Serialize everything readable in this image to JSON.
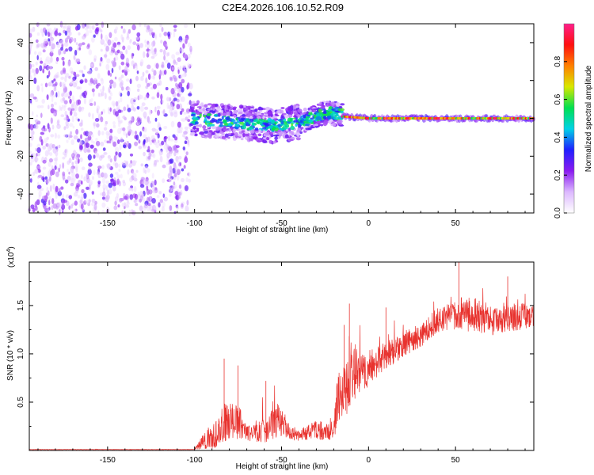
{
  "title": "C2E4.2026.106.10.52.R09",
  "chart_data": [
    {
      "type": "heatmap",
      "name": "spectrogram",
      "xlabel": "Height of straight line (km)",
      "ylabel": "Frequency (Hz)",
      "xlim": [
        -195,
        95
      ],
      "ylim": [
        -50,
        50
      ],
      "xticks": [
        -150,
        -100,
        -50,
        0,
        50
      ],
      "yticks": [
        -40,
        -20,
        0,
        20,
        40
      ],
      "colorbar": {
        "label": "Normalized spectral amplitude",
        "range": [
          0.0,
          1.0
        ],
        "ticks": [
          "0.0",
          "0.2",
          "0.4",
          "0.6",
          "0.8"
        ],
        "colors": [
          "#ffffff",
          "#dcb8ff",
          "#8a1bf0",
          "#1f1fff",
          "#00d2e6",
          "#00e050",
          "#d8e800",
          "#ff8000",
          "#ff1010",
          "#ff1f8a"
        ]
      },
      "regions": [
        {
          "x": [
            -195,
            -102
          ],
          "freq_spread": [
            -50,
            50
          ],
          "amplitude": [
            0.05,
            0.3
          ],
          "description_note": "broadband"
        },
        {
          "x": [
            -102,
            -15
          ],
          "freq_center": [
            [
              -102,
              0
            ],
            [
              -80,
              -2
            ],
            [
              -55,
              -4
            ],
            [
              -40,
              -2
            ],
            [
              -25,
              3
            ],
            [
              -15,
              2
            ]
          ],
          "amplitude": [
            0.2,
            0.55
          ]
        },
        {
          "x": [
            -15,
            95
          ],
          "freq_center": [
            [
              -15,
              1
            ],
            [
              0,
              0
            ],
            [
              95,
              0
            ]
          ],
          "amplitude": [
            0.5,
            1.0
          ]
        }
      ]
    },
    {
      "type": "line",
      "name": "snr",
      "xlabel": "Height of straight line (km)",
      "ylabel": "SNR (10 * v/v)",
      "multiplier": "(x10",
      "multiplier_exp": "4",
      "xlim": [
        -195,
        95
      ],
      "ylim": [
        0,
        1.95
      ],
      "xticks": [
        -150,
        -100,
        -50,
        0,
        50
      ],
      "yticks": [
        "0.5",
        "1.0",
        "1.5"
      ],
      "series": [
        {
          "name": "SNR",
          "color": "#e8322e",
          "envelope_x": [
            -195,
            -100,
            -98,
            -90,
            -82,
            -75,
            -70,
            -60,
            -52,
            -45,
            -40,
            -30,
            -25,
            -20,
            -18,
            -12,
            -8,
            -5,
            0,
            10,
            20,
            30,
            40,
            55,
            70,
            80,
            95
          ],
          "envelope_mean": [
            0.01,
            0.01,
            0.05,
            0.15,
            0.3,
            0.3,
            0.2,
            0.2,
            0.32,
            0.2,
            0.15,
            0.22,
            0.2,
            0.2,
            0.5,
            0.65,
            0.82,
            0.78,
            0.85,
            0.98,
            1.1,
            1.2,
            1.35,
            1.42,
            1.35,
            1.38,
            1.4
          ],
          "envelope_noise": [
            0.002,
            0.002,
            0.04,
            0.15,
            0.2,
            0.18,
            0.1,
            0.12,
            0.18,
            0.09,
            0.06,
            0.1,
            0.1,
            0.1,
            0.25,
            0.28,
            0.3,
            0.22,
            0.18,
            0.15,
            0.13,
            0.13,
            0.13,
            0.18,
            0.17,
            0.16,
            0.12
          ],
          "peaks": [
            [
              -83,
              0.95
            ],
            [
              -75,
              0.88
            ],
            [
              -59,
              0.72
            ],
            [
              -14,
              1.3
            ],
            [
              -11,
              1.52
            ],
            [
              10,
              1.48
            ],
            [
              52,
              1.95
            ],
            [
              80,
              1.8
            ]
          ]
        }
      ]
    }
  ]
}
